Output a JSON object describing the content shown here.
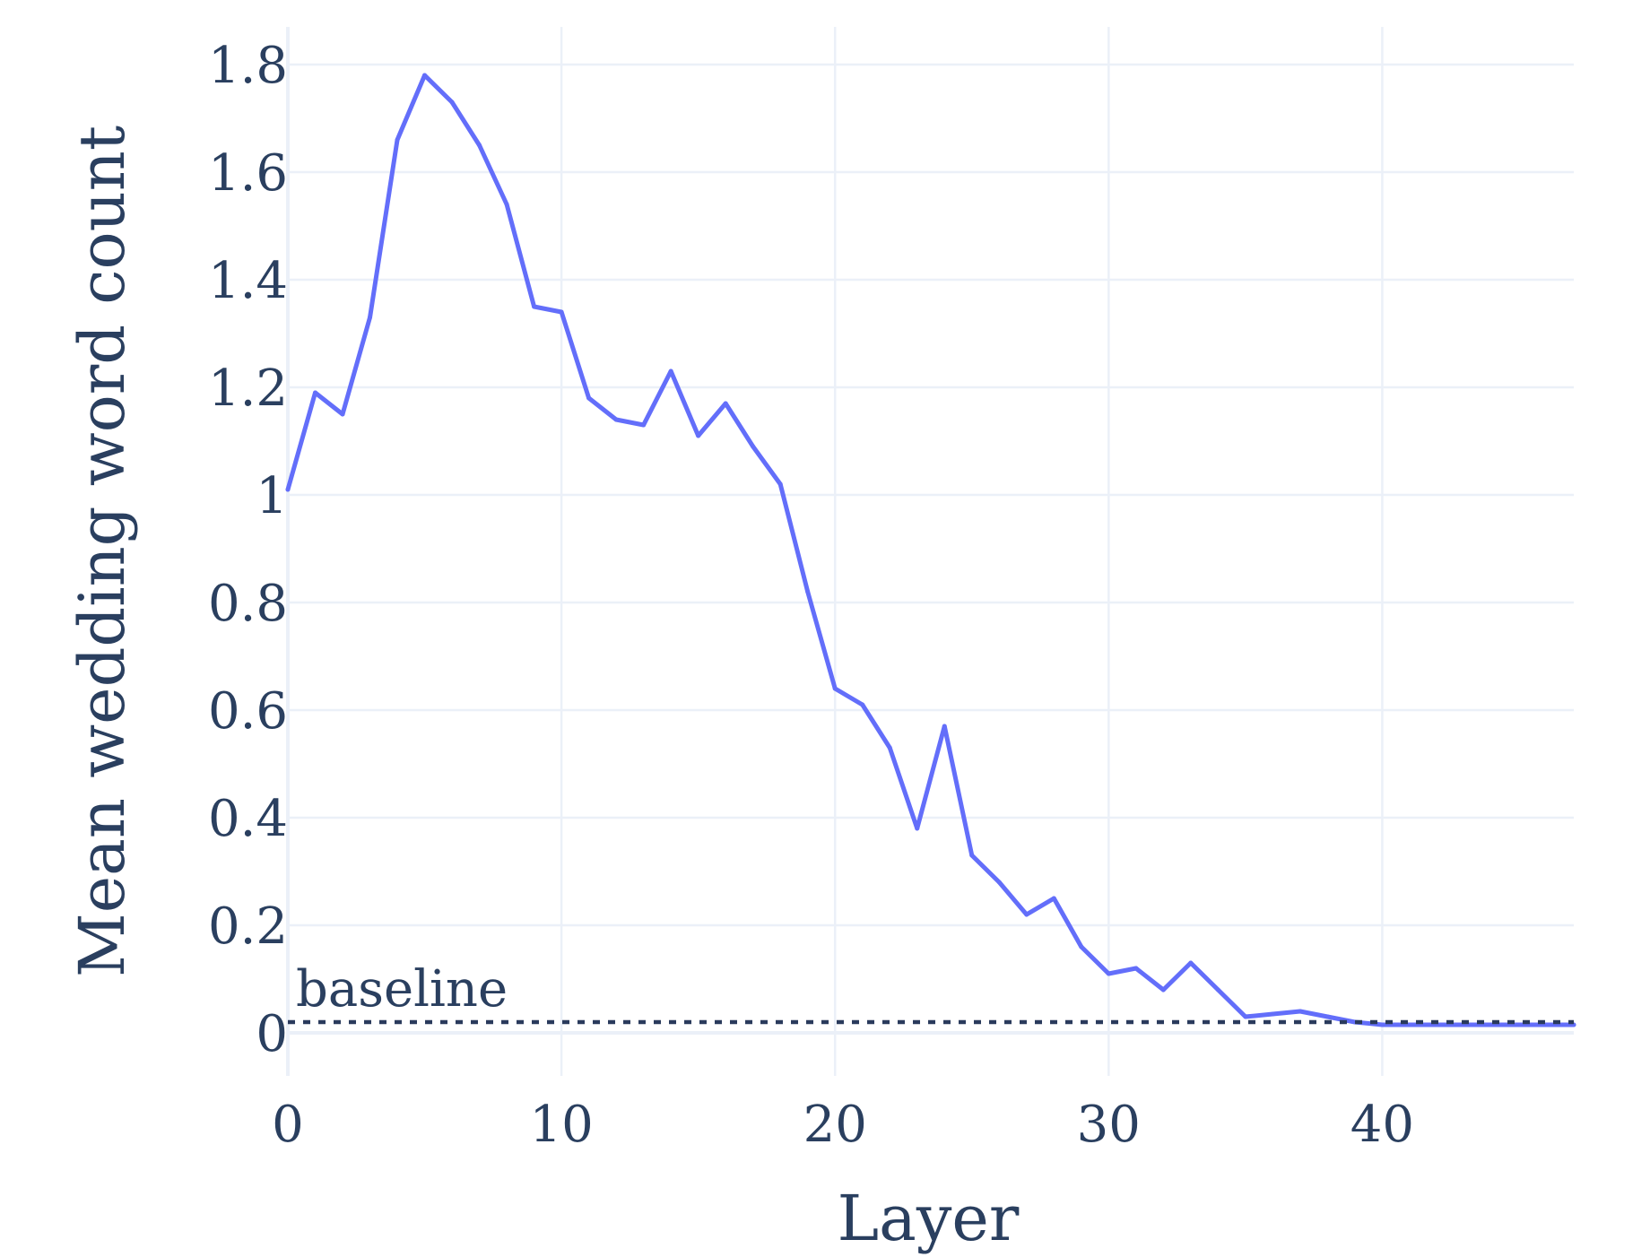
{
  "chart_data": {
    "type": "line",
    "title": "",
    "xlabel": "Layer",
    "ylabel": "Mean wedding word count",
    "xlim": [
      0,
      47
    ],
    "ylim": [
      -0.08,
      1.87
    ],
    "grid": true,
    "x_ticks": [
      0,
      10,
      20,
      30,
      40
    ],
    "y_ticks": [
      0,
      0.2,
      0.4,
      0.6,
      0.8,
      1,
      1.2,
      1.4,
      1.6,
      1.8
    ],
    "x_tick_labels": [
      "0",
      "10",
      "20",
      "30",
      "40"
    ],
    "y_tick_labels": [
      "0",
      "0.2",
      "0.4",
      "0.6",
      "0.8",
      "1",
      "1.2",
      "1.4",
      "1.6",
      "1.8"
    ],
    "series": [
      {
        "color": "#636efa",
        "x": [
          0,
          1,
          2,
          3,
          4,
          5,
          6,
          7,
          8,
          9,
          10,
          11,
          12,
          13,
          14,
          15,
          16,
          17,
          18,
          19,
          20,
          21,
          22,
          23,
          24,
          25,
          26,
          27,
          28,
          29,
          30,
          31,
          32,
          33,
          34,
          35,
          36,
          37,
          38,
          39,
          40,
          41,
          42,
          43,
          44,
          45,
          46,
          47
        ],
        "y": [
          1.01,
          1.19,
          1.15,
          1.33,
          1.66,
          1.78,
          1.73,
          1.65,
          1.54,
          1.35,
          1.34,
          1.18,
          1.14,
          1.13,
          1.23,
          1.11,
          1.17,
          1.09,
          1.02,
          0.82,
          0.64,
          0.61,
          0.53,
          0.38,
          0.57,
          0.33,
          0.28,
          0.22,
          0.25,
          0.16,
          0.11,
          0.12,
          0.08,
          0.13,
          0.08,
          0.03,
          0.035,
          0.04,
          0.03,
          0.02,
          0.015,
          0.015,
          0.015,
          0.015,
          0.015,
          0.015,
          0.015,
          0.015
        ]
      }
    ],
    "baseline": {
      "label": "baseline",
      "y": 0.02,
      "color": "#2a3a5c",
      "style": "dotted"
    }
  }
}
